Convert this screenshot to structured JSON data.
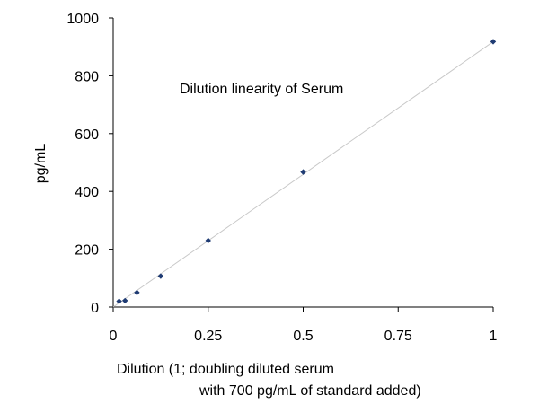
{
  "chart_data": {
    "type": "scatter",
    "title": "",
    "annotation": "Dilution linearity of Serum",
    "xlabel_lines": [
      "Dilution (1; doubling diluted serum",
      "with 700 pg/mL of standard added)"
    ],
    "ylabel": "pg/mL",
    "xlim": [
      0,
      1
    ],
    "ylim": [
      0,
      1000
    ],
    "xticks": [
      0,
      0.25,
      0.5,
      0.75,
      1
    ],
    "xtick_labels": [
      "0",
      "0.25",
      "0.5",
      "0.75",
      "1"
    ],
    "yticks": [
      0,
      200,
      400,
      600,
      800,
      1000
    ],
    "ytick_labels": [
      "0",
      "200",
      "400",
      "600",
      "800",
      "1000"
    ],
    "grid": false,
    "legend": "none",
    "series": [
      {
        "x": [
          0.015625,
          0.03125,
          0.0625,
          0.125,
          0.25,
          0.5,
          1
        ],
        "y": [
          20,
          22,
          50,
          107,
          230,
          467,
          918
        ],
        "marker": "diamond",
        "color": "#1f3b73"
      }
    ],
    "trendline": {
      "x": [
        0,
        1
      ],
      "y": [
        0,
        918
      ],
      "color": "#c8c8c8"
    }
  }
}
